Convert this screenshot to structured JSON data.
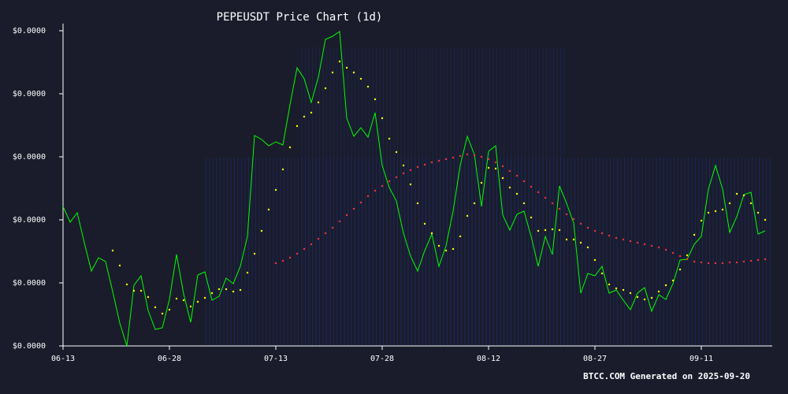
{
  "chart_data": {
    "type": "line",
    "title": "PEPEUSDT Price Chart (1d)",
    "footer": "BTCC.COM Generated on 2025-09-20",
    "x": [
      0,
      1,
      2,
      3,
      4,
      5,
      6,
      7,
      8,
      9,
      10,
      11,
      12,
      13,
      14,
      15,
      16,
      17,
      18,
      19,
      20,
      21,
      22,
      23,
      24,
      25,
      26,
      27,
      28,
      29,
      30,
      31,
      32,
      33,
      34,
      35,
      36,
      37,
      38,
      39,
      40,
      41,
      42,
      43,
      44,
      45,
      46,
      47,
      48,
      49,
      50,
      51,
      52,
      53,
      54,
      55,
      56,
      57,
      58,
      59,
      60,
      61,
      62,
      63,
      64,
      65,
      66,
      67,
      68,
      69,
      70,
      71,
      72,
      73,
      74,
      75,
      76,
      77,
      78,
      79,
      80,
      81,
      82,
      83,
      84,
      85,
      86,
      87,
      88,
      89,
      90,
      91,
      92,
      93,
      94,
      95,
      96,
      97,
      98,
      99
    ],
    "xlim": [
      0,
      100
    ],
    "xticks": [
      {
        "value": 0,
        "label": "06-13"
      },
      {
        "value": 15,
        "label": "06-28"
      },
      {
        "value": 30,
        "label": "07-13"
      },
      {
        "value": 45,
        "label": "07-28"
      },
      {
        "value": 60,
        "label": "08-12"
      },
      {
        "value": 75,
        "label": "08-27"
      },
      {
        "value": 90,
        "label": "09-11"
      }
    ],
    "ylim": [
      7e-06,
      1.5e-05
    ],
    "yticks": [
      {
        "value": 7e-06,
        "label": "$0.0000"
      },
      {
        "value": 8.6e-06,
        "label": "$0.0000"
      },
      {
        "value": 1.02e-05,
        "label": "$0.0000"
      },
      {
        "value": 1.18e-05,
        "label": "$0.0000"
      },
      {
        "value": 1.34e-05,
        "label": "$0.0000"
      },
      {
        "value": 1.5e-05,
        "label": "$0.0000"
      }
    ],
    "series": [
      {
        "color": "#00ff00",
        "style": "line",
        "values": [
          1.054e-05,
          1.014e-05,
          1.038e-05,
          9.62e-06,
          8.9e-06,
          9.24e-06,
          9.14e-06,
          8.38e-06,
          7.58e-06,
          7e-06,
          8.54e-06,
          8.78e-06,
          7.9e-06,
          7.42e-06,
          7.46e-06,
          8.18e-06,
          9.32e-06,
          8.32e-06,
          7.6e-06,
          8.8e-06,
          8.88e-06,
          8.16e-06,
          8.26e-06,
          8.72e-06,
          8.58e-06,
          9.02e-06,
          9.78e-06,
          1.234e-05,
          1.224e-05,
          1.208e-05,
          1.218e-05,
          1.21e-05,
          1.312e-05,
          1.406e-05,
          1.378e-05,
          1.318e-05,
          1.382e-05,
          1.478e-05,
          1.486e-05,
          1.498e-05,
          1.278e-05,
          1.232e-05,
          1.254e-05,
          1.23e-05,
          1.292e-05,
          1.158e-05,
          1.102e-05,
          1.068e-05,
          9.86e-06,
          9.28e-06,
          8.9e-06,
          9.42e-06,
          9.84e-06,
          9.02e-06,
          9.54e-06,
          1.042e-05,
          1.158e-05,
          1.232e-05,
          1.186e-05,
          1.054e-05,
          1.194e-05,
          1.208e-05,
          1.032e-05,
          9.94e-06,
          1.034e-05,
          1.042e-05,
          9.78e-06,
          9.02e-06,
          9.78e-06,
          9.32e-06,
          1.106e-05,
          1.062e-05,
          1.012e-05,
          8.34e-06,
          8.84e-06,
          8.78e-06,
          9.02e-06,
          8.34e-06,
          8.42e-06,
          8.16e-06,
          7.92e-06,
          8.34e-06,
          8.48e-06,
          7.88e-06,
          8.3e-06,
          8.18e-06,
          8.58e-06,
          9.18e-06,
          9.2e-06,
          9.58e-06,
          9.78e-06,
          1.098e-05,
          1.158e-05,
          1.098e-05,
          9.88e-06,
          1.028e-05,
          1.084e-05,
          1.09e-05,
          9.84e-06,
          9.92e-06
        ]
      },
      {
        "color": "#ffff00",
        "style": "dots",
        "values": [
          null,
          null,
          null,
          null,
          null,
          null,
          null,
          9.42e-06,
          9.04e-06,
          8.56e-06,
          8.4e-06,
          8.4e-06,
          8.24e-06,
          7.98e-06,
          7.82e-06,
          7.92e-06,
          8.2e-06,
          8.16e-06,
          8e-06,
          8.12e-06,
          8.22e-06,
          8.34e-06,
          8.44e-06,
          8.44e-06,
          8.38e-06,
          8.42e-06,
          8.86e-06,
          9.34e-06,
          9.92e-06,
          1.046e-05,
          1.096e-05,
          1.148e-05,
          1.204e-05,
          1.258e-05,
          1.282e-05,
          1.292e-05,
          1.318e-05,
          1.354e-05,
          1.394e-05,
          1.422e-05,
          1.406e-05,
          1.394e-05,
          1.378e-05,
          1.358e-05,
          1.326e-05,
          1.278e-05,
          1.226e-05,
          1.192e-05,
          1.158e-05,
          1.11e-05,
          1.062e-05,
          1.01e-05,
          9.86e-06,
          9.54e-06,
          9.42e-06,
          9.46e-06,
          9.78e-06,
          1.03e-05,
          1.062e-05,
          1.114e-05,
          1.152e-05,
          1.15e-05,
          1.126e-05,
          1.102e-05,
          1.086e-05,
          1.062e-05,
          1.026e-05,
          9.92e-06,
          9.94e-06,
          9.96e-06,
          9.94e-06,
          9.7e-06,
          9.7e-06,
          9.62e-06,
          9.5e-06,
          9.18e-06,
          8.84e-06,
          8.56e-06,
          8.46e-06,
          8.42e-06,
          8.34e-06,
          8.24e-06,
          8.18e-06,
          8.22e-06,
          8.38e-06,
          8.54e-06,
          8.66e-06,
          8.94e-06,
          9.3e-06,
          9.82e-06,
          1.018e-05,
          1.038e-05,
          1.042e-05,
          1.046e-05,
          1.062e-05,
          1.086e-05,
          1.082e-05,
          1.062e-05,
          1.038e-05,
          1.02e-05
        ]
      },
      {
        "color": "#ff3030",
        "style": "dots",
        "values": [
          null,
          null,
          null,
          null,
          null,
          null,
          null,
          null,
          null,
          null,
          null,
          null,
          null,
          null,
          null,
          null,
          null,
          null,
          null,
          null,
          null,
          null,
          null,
          null,
          null,
          null,
          null,
          null,
          null,
          null,
          9.1e-06,
          9.16e-06,
          9.24e-06,
          9.34e-06,
          9.46e-06,
          9.58e-06,
          9.72e-06,
          9.86e-06,
          1e-05,
          1.016e-05,
          1.032e-05,
          1.048e-05,
          1.064e-05,
          1.08e-05,
          1.094e-05,
          1.106e-05,
          1.118e-05,
          1.128e-05,
          1.138e-05,
          1.146e-05,
          1.154e-05,
          1.16e-05,
          1.166e-05,
          1.17e-05,
          1.174e-05,
          1.178e-05,
          1.182e-05,
          1.186e-05,
          1.184e-05,
          1.18e-05,
          1.174e-05,
          1.166e-05,
          1.156e-05,
          1.144e-05,
          1.132e-05,
          1.118e-05,
          1.104e-05,
          1.09e-05,
          1.076e-05,
          1.062e-05,
          1.048e-05,
          1.034e-05,
          1.022e-05,
          1.01e-05,
          1e-05,
          9.92e-06,
          9.86e-06,
          9.8e-06,
          9.74e-06,
          9.7e-06,
          9.66e-06,
          9.62e-06,
          9.58e-06,
          9.54e-06,
          9.5e-06,
          9.44e-06,
          9.36e-06,
          9.28e-06,
          9.2e-06,
          9.14e-06,
          9.12e-06,
          9.1e-06,
          9.1e-06,
          9.1e-06,
          9.12e-06,
          9.12e-06,
          9.14e-06,
          9.16e-06,
          9.18e-06,
          9.2e-06
        ]
      }
    ]
  }
}
